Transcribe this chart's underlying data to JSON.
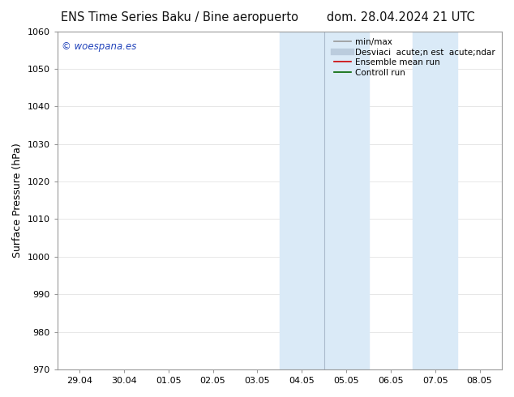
{
  "title_left": "ENS Time Series Baku / Bine aeropuerto",
  "title_right": "dom. 28.04.2024 21 UTC",
  "ylabel": "Surface Pressure (hPa)",
  "ylim": [
    970,
    1060
  ],
  "yticks": [
    970,
    980,
    990,
    1000,
    1010,
    1020,
    1030,
    1040,
    1050,
    1060
  ],
  "xtick_labels": [
    "29.04",
    "30.04",
    "01.05",
    "02.05",
    "03.05",
    "04.05",
    "05.05",
    "06.05",
    "07.05",
    "08.05"
  ],
  "xtick_positions": [
    0,
    1,
    2,
    3,
    4,
    5,
    6,
    7,
    8,
    9
  ],
  "xlim": [
    -0.5,
    9.5
  ],
  "band1_x0": 4.5,
  "band1_x1": 5.5,
  "band1b_x0": 5.5,
  "band1b_x1": 6.5,
  "band2_x0": 7.5,
  "band2_x1": 8.5,
  "band_color": "#daeaf7",
  "band_divider_color": "#c0d8ee",
  "watermark_text": "© woespana.es",
  "watermark_color": "#2244bb",
  "legend_entries": [
    {
      "label": "min/max",
      "color": "#999999",
      "lw": 1.2
    },
    {
      "label": "Desviaci  acute;n est  acute;ndar",
      "color": "#bbccdd",
      "lw": 6
    },
    {
      "label": "Ensemble mean run",
      "color": "#cc0000",
      "lw": 1.2
    },
    {
      "label": "Controll run",
      "color": "#006600",
      "lw": 1.2
    }
  ],
  "bg_color": "#ffffff",
  "spine_color": "#999999",
  "tick_color": "#333333",
  "title_fontsize": 10.5,
  "tick_fontsize": 8,
  "ylabel_fontsize": 9,
  "legend_fontsize": 7.5
}
